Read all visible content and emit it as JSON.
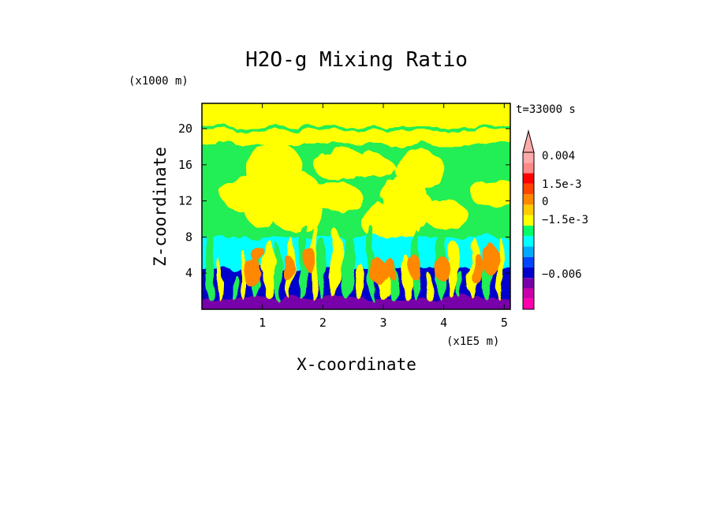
{
  "chart_data": {
    "type": "heatmap",
    "title": "H2O-g Mixing Ratio",
    "xlabel": "X-coordinate",
    "ylabel": "Z-coordinate",
    "x_scale_label": "(x1E5 m)",
    "y_scale_label": "(x1000 m)",
    "time_label": "t=33000 s",
    "x_ticks": [
      "1",
      "2",
      "3",
      "4",
      "5"
    ],
    "y_ticks": [
      "4",
      "8",
      "12",
      "16",
      "20"
    ],
    "xlim": [
      0,
      5.1
    ],
    "ylim": [
      0,
      22.8
    ],
    "colorbar": {
      "labels": [
        "0.004",
        "1.5e-3",
        "0",
        "−1.5e-3",
        "−0.006"
      ],
      "levels": [
        {
          "color": "#ff00aa"
        },
        {
          "color": "#cc00aa"
        },
        {
          "color": "#7700aa"
        },
        {
          "color": "#0000cc"
        },
        {
          "color": "#0044ff"
        },
        {
          "color": "#00aaff"
        },
        {
          "color": "#00ffff"
        },
        {
          "color": "#00ff66"
        },
        {
          "color": "#ffff00"
        },
        {
          "color": "#ffcc00"
        },
        {
          "color": "#ff8800"
        },
        {
          "color": "#ff4400"
        },
        {
          "color": "#ff0000"
        },
        {
          "color": "#ff8888"
        },
        {
          "color": "#ffaaaa"
        }
      ]
    },
    "field_description_levels": {
      "background_upper": "#22ee55",
      "upper_band": "#ffff00",
      "mid_band": "#00ffff",
      "lower_band": "#0000cc",
      "surface": "#7700aa",
      "plumes": "#ff8800"
    }
  }
}
